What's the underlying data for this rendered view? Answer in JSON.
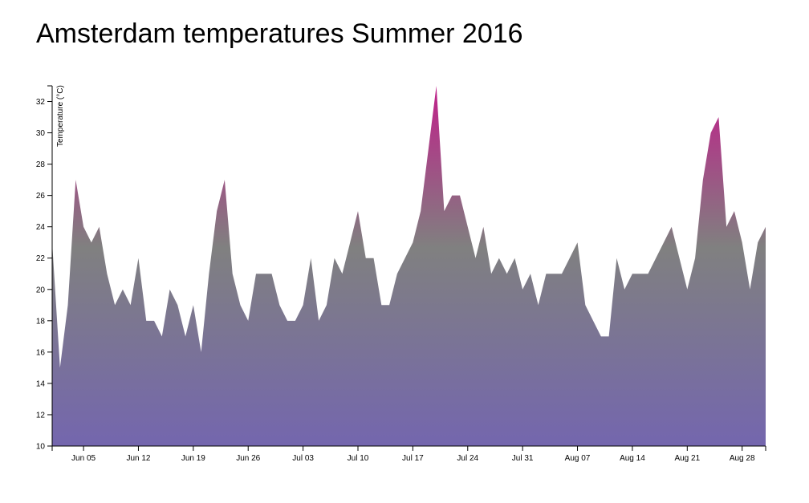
{
  "title": "Amsterdam temperatures Summer 2016",
  "chart_data": {
    "type": "area",
    "title": "Amsterdam temperatures Summer 2016",
    "xlabel": "",
    "ylabel": "Temperature (°C)",
    "x_start": "2016-06-01",
    "x_end": "2016-08-31",
    "ylim": [
      10,
      33
    ],
    "yticks": [
      10,
      12,
      14,
      16,
      18,
      20,
      22,
      24,
      26,
      28,
      30,
      32
    ],
    "xtick_labels": [
      "Jun 05",
      "Jun 12",
      "Jun 19",
      "Jun 26",
      "Jul 03",
      "Jul 10",
      "Jul 17",
      "Jul 24",
      "Jul 31",
      "Aug 07",
      "Aug 14",
      "Aug 21",
      "Aug 28"
    ],
    "xtick_dates": [
      "2016-06-05",
      "2016-06-12",
      "2016-06-19",
      "2016-06-26",
      "2016-07-03",
      "2016-07-10",
      "2016-07-17",
      "2016-07-24",
      "2016-07-31",
      "2016-08-07",
      "2016-08-14",
      "2016-08-21",
      "2016-08-28"
    ],
    "x": [
      "2016-06-01",
      "2016-06-02",
      "2016-06-03",
      "2016-06-04",
      "2016-06-05",
      "2016-06-06",
      "2016-06-07",
      "2016-06-08",
      "2016-06-09",
      "2016-06-10",
      "2016-06-11",
      "2016-06-12",
      "2016-06-13",
      "2016-06-14",
      "2016-06-15",
      "2016-06-16",
      "2016-06-17",
      "2016-06-18",
      "2016-06-19",
      "2016-06-20",
      "2016-06-21",
      "2016-06-22",
      "2016-06-23",
      "2016-06-24",
      "2016-06-25",
      "2016-06-26",
      "2016-06-27",
      "2016-06-28",
      "2016-06-29",
      "2016-06-30",
      "2016-07-01",
      "2016-07-02",
      "2016-07-03",
      "2016-07-04",
      "2016-07-05",
      "2016-07-06",
      "2016-07-07",
      "2016-07-08",
      "2016-07-09",
      "2016-07-10",
      "2016-07-11",
      "2016-07-12",
      "2016-07-13",
      "2016-07-14",
      "2016-07-15",
      "2016-07-16",
      "2016-07-17",
      "2016-07-18",
      "2016-07-19",
      "2016-07-20",
      "2016-07-21",
      "2016-07-22",
      "2016-07-23",
      "2016-07-24",
      "2016-07-25",
      "2016-07-26",
      "2016-07-27",
      "2016-07-28",
      "2016-07-29",
      "2016-07-30",
      "2016-07-31",
      "2016-08-01",
      "2016-08-02",
      "2016-08-03",
      "2016-08-04",
      "2016-08-05",
      "2016-08-06",
      "2016-08-07",
      "2016-08-08",
      "2016-08-09",
      "2016-08-10",
      "2016-08-11",
      "2016-08-12",
      "2016-08-13",
      "2016-08-14",
      "2016-08-15",
      "2016-08-16",
      "2016-08-17",
      "2016-08-18",
      "2016-08-19",
      "2016-08-20",
      "2016-08-21",
      "2016-08-22",
      "2016-08-23",
      "2016-08-24",
      "2016-08-25",
      "2016-08-26",
      "2016-08-27",
      "2016-08-28",
      "2016-08-29",
      "2016-08-30",
      "2016-08-31"
    ],
    "values": [
      23,
      15,
      19,
      27,
      24,
      23,
      24,
      21,
      19,
      20,
      19,
      22,
      18,
      18,
      17,
      20,
      19,
      17,
      19,
      16,
      21,
      25,
      27,
      21,
      19,
      18,
      21,
      21,
      21,
      19,
      18,
      18,
      19,
      22,
      18,
      19,
      22,
      21,
      23,
      25,
      22,
      22,
      19,
      19,
      21,
      22,
      23,
      25,
      29,
      33,
      25,
      26,
      26,
      24,
      22,
      24,
      21,
      22,
      21,
      22,
      20,
      21,
      19,
      21,
      21,
      21,
      22,
      23,
      19,
      18,
      17,
      17,
      22,
      20,
      21,
      21,
      21,
      22,
      23,
      24,
      22,
      20,
      22,
      27,
      30,
      31,
      24,
      25,
      23,
      20,
      23,
      24
    ],
    "grid": false,
    "legend": "none",
    "colors": {
      "high": "#c0208a",
      "mid": "#808080",
      "low": "#7466ae"
    }
  }
}
